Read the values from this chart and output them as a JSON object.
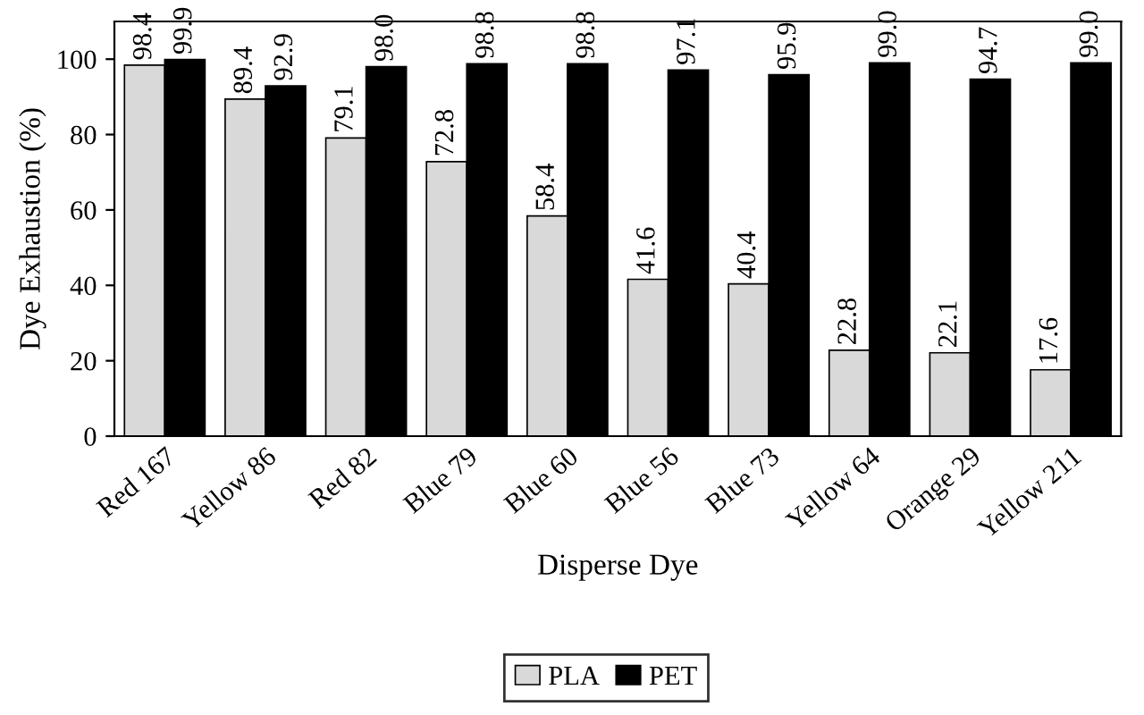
{
  "chart_data": {
    "type": "bar",
    "xlabel": "Disperse Dye",
    "ylabel": "Dye Exhaustion (%)",
    "categories": [
      "Red 167",
      "Yellow 86",
      "Red 82",
      "Blue 79",
      "Blue 60",
      "Blue 56",
      "Blue 73",
      "Yellow 64",
      "Orange 29",
      "Yellow 211"
    ],
    "series": [
      {
        "name": "PLA",
        "color": "#d9d9d9",
        "values": [
          98.4,
          89.4,
          79.1,
          72.8,
          58.4,
          41.6,
          40.4,
          22.8,
          22.1,
          17.6
        ],
        "value_labels": [
          "98.4",
          "89.4",
          "79.1",
          "72.8",
          "58.4",
          "41.6",
          "40.4",
          "22.8",
          "22.1",
          "17.6"
        ]
      },
      {
        "name": "PET",
        "color": "#000000",
        "values": [
          99.9,
          92.9,
          98.0,
          98.8,
          98.8,
          97.1,
          95.9,
          99.0,
          94.7,
          99.0
        ],
        "value_labels": [
          "99.9",
          "92.9",
          "98.0",
          "98.8",
          "98.8",
          "97.1",
          "95.9",
          "99.0",
          "94.7",
          "99.0"
        ]
      }
    ],
    "ylim": [
      0,
      110
    ],
    "yticks": [
      0,
      20,
      40,
      60,
      80,
      100
    ],
    "grid": false,
    "legend": "bottom"
  }
}
